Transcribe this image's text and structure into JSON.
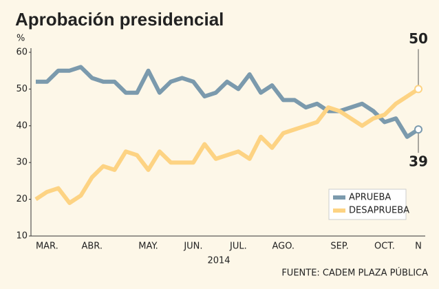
{
  "chart_data": {
    "type": "line",
    "title": "Aprobación presidencial",
    "y_unit": "%",
    "x_label": "2014",
    "source": "FUENTE: CADEM PLAZA PÚBLICA",
    "categories": [
      null,
      "MAR.",
      null,
      null,
      null,
      "ABR.",
      null,
      null,
      null,
      null,
      "MAY.",
      null,
      null,
      null,
      "JUN.",
      null,
      null,
      null,
      "JUL.",
      null,
      null,
      null,
      "AGO.",
      null,
      null,
      null,
      null,
      "SEP.",
      null,
      null,
      null,
      "OCT.",
      null,
      null,
      "N"
    ],
    "series": [
      {
        "name": "APRUEBA",
        "color": "#7b9aad",
        "values": [
          52,
          52,
          55,
          55,
          56,
          53,
          52,
          52,
          49,
          49,
          55,
          49,
          52,
          53,
          52,
          48,
          49,
          52,
          50,
          54,
          49,
          51,
          47,
          47,
          45,
          46,
          44,
          44,
          45,
          46,
          44,
          41,
          42,
          37,
          39
        ]
      },
      {
        "name": "DESAPRUEBA",
        "color": "#fdd383",
        "values": [
          20,
          22,
          23,
          19,
          21,
          26,
          29,
          28,
          33,
          32,
          28,
          33,
          30,
          30,
          30,
          35,
          31,
          32,
          33,
          31,
          37,
          34,
          38,
          39,
          40,
          41,
          45,
          44,
          42,
          40,
          42,
          43,
          46,
          48,
          50
        ]
      }
    ],
    "ylim": [
      10,
      60
    ],
    "yticks": [
      10,
      20,
      30,
      40,
      50,
      60
    ],
    "grid": false,
    "legend": "lower right"
  }
}
